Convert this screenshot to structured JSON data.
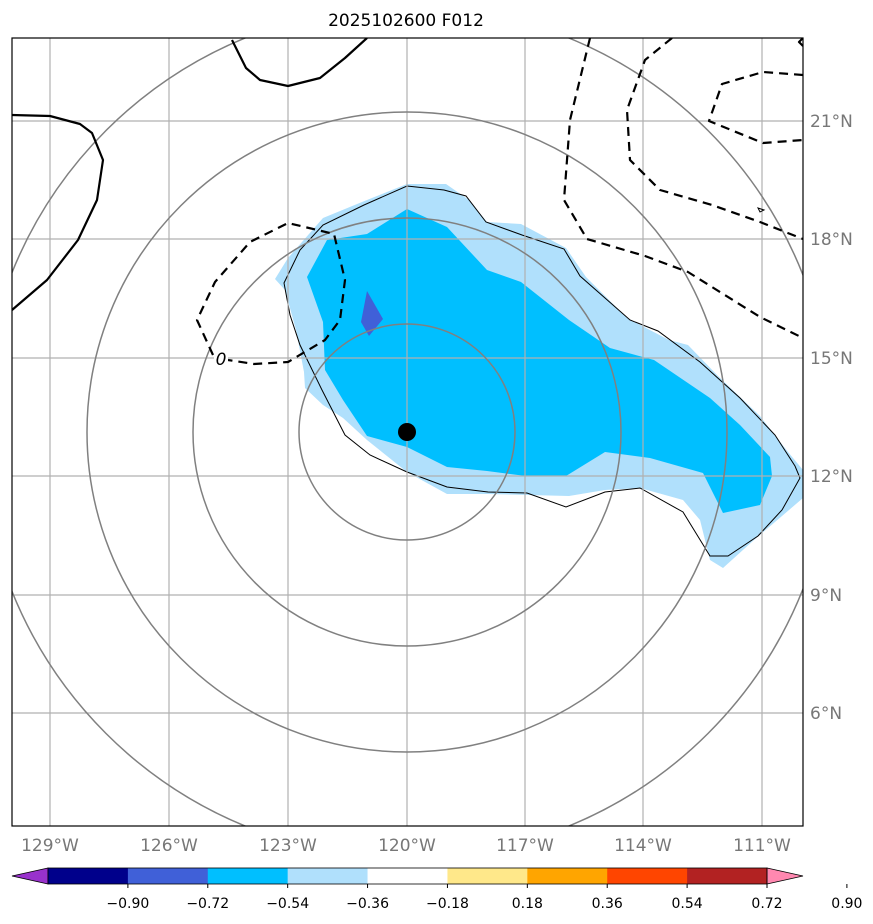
{
  "title": "2025102600 F012",
  "map": {
    "lon_labels": [
      "129°W",
      "126°W",
      "123°W",
      "120°W",
      "117°W",
      "114°W",
      "111°W"
    ],
    "lat_labels": [
      "21°N",
      "18°N",
      "15°N",
      "12°N",
      "9°N",
      "6°N"
    ],
    "contour_label": "0",
    "storm_center": {
      "lon": -120.0,
      "lat": 13.1
    },
    "colors": {
      "shade_outer": "#b0e0fc",
      "shade_mid": "#00bfff",
      "shade_inner": "#4060d8",
      "rings": "#808080",
      "grid": "#b0b0b0"
    }
  },
  "colorbar": {
    "labels": [
      "−0.90",
      "−0.72",
      "−0.54",
      "−0.36",
      "−0.18",
      "0.18",
      "0.36",
      "0.54",
      "0.72",
      "0.90"
    ],
    "values": [
      -0.9,
      -0.72,
      -0.54,
      -0.36,
      -0.18,
      0.18,
      0.36,
      0.54,
      0.72,
      0.9
    ],
    "colors": [
      "#9932cc",
      "#00008b",
      "#4060d8",
      "#00bfff",
      "#b0e0fc",
      "#ffffff",
      "#ffe88a",
      "#ffa500",
      "#ff4500",
      "#b22222",
      "#ff88b0"
    ]
  }
}
